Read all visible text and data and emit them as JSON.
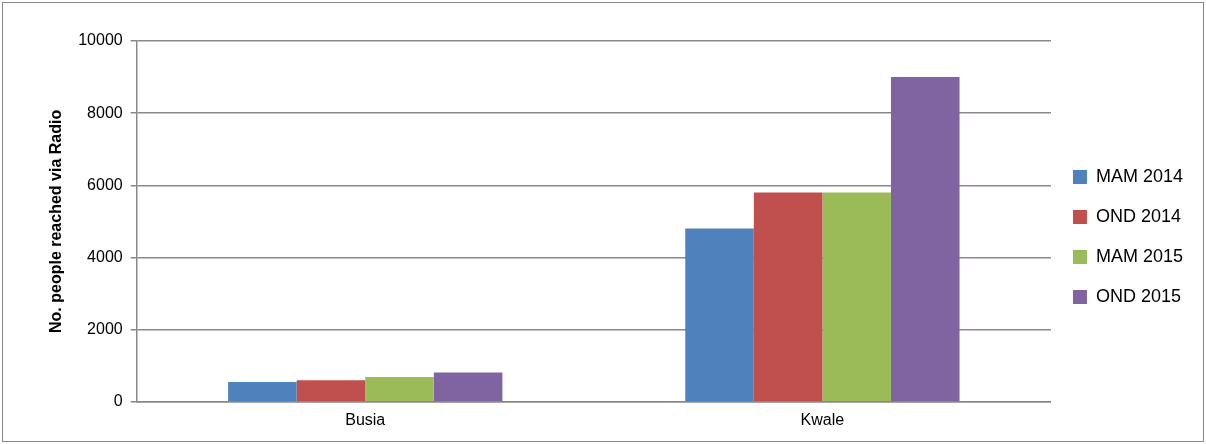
{
  "chart_data": {
    "type": "bar",
    "ylabel": "No. people reached via Radio",
    "categories": [
      "Busia",
      "Kwale"
    ],
    "series": [
      {
        "name": "MAM 2014",
        "color": "#4f81bd",
        "values": [
          550,
          4800
        ]
      },
      {
        "name": "OND 2014",
        "color": "#c0504d",
        "values": [
          600,
          5800
        ]
      },
      {
        "name": "MAM 2015",
        "color": "#9bbb59",
        "values": [
          690,
          5800
        ]
      },
      {
        "name": "OND 2015",
        "color": "#8064a2",
        "values": [
          810,
          9000
        ]
      }
    ],
    "ylim": [
      0,
      10000
    ],
    "yticks": [
      0,
      2000,
      4000,
      6000,
      8000,
      10000
    ],
    "grid": "y",
    "legend": "right"
  }
}
